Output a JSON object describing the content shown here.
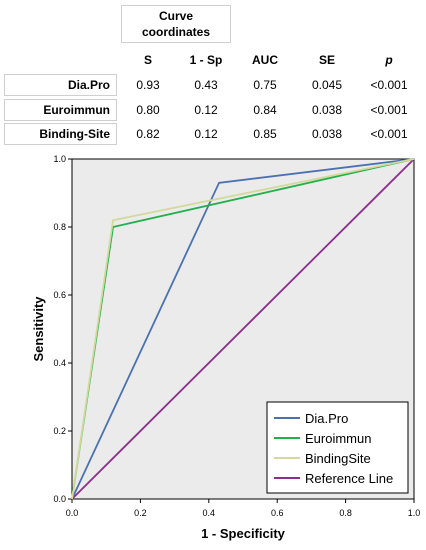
{
  "table": {
    "group_header": [
      "Curve",
      "coordinates"
    ],
    "columns": [
      "S",
      "1 - Sp",
      "AUC",
      "SE",
      "p"
    ],
    "rows": [
      {
        "label": "Dia.Pro",
        "values": [
          "0.93",
          "0.43",
          "0.75",
          "0.045",
          "<0.001"
        ]
      },
      {
        "label": "Euroimmun",
        "values": [
          "0.80",
          "0.12",
          "0.84",
          "0.038",
          "<0.001"
        ]
      },
      {
        "label": "Binding-Site",
        "values": [
          "0.82",
          "0.12",
          "0.85",
          "0.038",
          "<0.001"
        ]
      }
    ]
  },
  "chart_data": {
    "type": "line",
    "title": "",
    "xlabel": "1 - Specificity",
    "ylabel": "Sensitivity",
    "xlim": [
      0,
      1
    ],
    "ylim": [
      0,
      1
    ],
    "xticks": [
      "0.0",
      "0.2",
      "0.4",
      "0.6",
      "0.8",
      "1.0"
    ],
    "yticks": [
      "0.0",
      "0.2",
      "0.4",
      "0.6",
      "0.8",
      "1.0"
    ],
    "grid": false,
    "legend_position": "bottom-right",
    "series": [
      {
        "name": "Dia.Pro",
        "color": "#4a72b0",
        "points": [
          [
            0,
            0
          ],
          [
            0.43,
            0.93
          ],
          [
            1,
            1
          ]
        ]
      },
      {
        "name": "Euroimmun",
        "color": "#21b04b",
        "points": [
          [
            0,
            0
          ],
          [
            0.12,
            0.8
          ],
          [
            1,
            1
          ]
        ]
      },
      {
        "name": "BindingSite",
        "color": "#d2d99a",
        "points": [
          [
            0,
            0
          ],
          [
            0.12,
            0.82
          ],
          [
            1,
            1
          ]
        ]
      },
      {
        "name": "Reference Line",
        "color": "#8b2f8a",
        "points": [
          [
            0,
            0
          ],
          [
            1,
            1
          ]
        ]
      }
    ]
  }
}
